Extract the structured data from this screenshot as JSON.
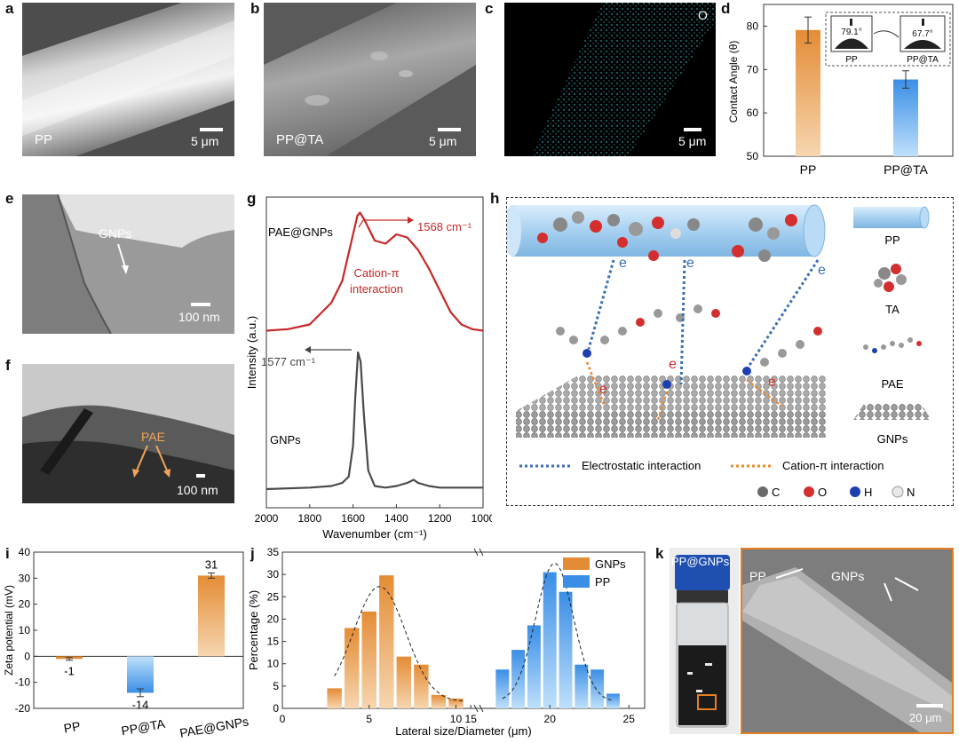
{
  "panel_letters": [
    "a",
    "b",
    "c",
    "d",
    "e",
    "f",
    "g",
    "h",
    "i",
    "j",
    "k"
  ],
  "panel_a": {
    "label": "PP",
    "scale": "5 μm"
  },
  "panel_b": {
    "label": "PP@TA",
    "scale": "5 μm"
  },
  "panel_c": {
    "element": "O",
    "scale": "5 μm"
  },
  "panel_e": {
    "label": "GNPs",
    "scale": "100 nm"
  },
  "panel_f": {
    "label": "PAE",
    "scale": "100 nm"
  },
  "panel_h": {
    "e_marks": [
      "e",
      "e",
      "e",
      "e",
      "e",
      "e"
    ],
    "legend_names": [
      "PP",
      "TA",
      "PAE",
      "GNPs"
    ],
    "interactions": [
      "Electrostatic interaction",
      "Cation-π interaction"
    ],
    "atoms": [
      "C",
      "O",
      "H",
      "N"
    ],
    "colors": {
      "electrostatic": "#3a6fb5",
      "cation_pi": "#e88a2e"
    }
  },
  "panel_k": {
    "vial_label": "PP@GNPs",
    "pp_label": "PP",
    "gnps_label": "GNPs",
    "scale": "20 μm"
  },
  "chart_data": [
    {
      "id": "d",
      "type": "bar",
      "categories": [
        "PP",
        "PP@TA"
      ],
      "values": [
        79.1,
        67.7
      ],
      "errors": [
        3.0,
        2.0
      ],
      "ylabel": "Contact Angle (θ)",
      "ylim": [
        50,
        85
      ],
      "yticks": [
        50,
        60,
        70,
        80
      ],
      "inset": {
        "angles": [
          "79.1°",
          "67.7°"
        ],
        "labels": [
          "PP",
          "PP@TA"
        ]
      },
      "colors": [
        "#e48c35",
        "#3a8ee6"
      ]
    },
    {
      "id": "g",
      "type": "line",
      "xlabel": "Wavenumber (cm⁻¹)",
      "ylabel": "Intensity (a.u.)",
      "xlim": [
        2000,
        1000
      ],
      "xticks": [
        2000,
        1800,
        1600,
        1400,
        1200,
        1000
      ],
      "series": [
        {
          "name": "PAE@GNPs",
          "color": "#c62828",
          "x": [
            2000,
            1900,
            1800,
            1700,
            1650,
            1600,
            1580,
            1568,
            1550,
            1500,
            1450,
            1400,
            1350,
            1300,
            1250,
            1200,
            1150,
            1100,
            1050,
            1000
          ],
          "y": [
            0.57,
            0.575,
            0.59,
            0.66,
            0.73,
            0.88,
            0.94,
            0.95,
            0.93,
            0.86,
            0.85,
            0.88,
            0.87,
            0.83,
            0.77,
            0.7,
            0.63,
            0.59,
            0.575,
            0.57
          ]
        },
        {
          "name": "GNPs",
          "color": "#4a4a4a",
          "x": [
            2000,
            1800,
            1700,
            1650,
            1620,
            1600,
            1590,
            1577,
            1565,
            1550,
            1530,
            1500,
            1450,
            1400,
            1350,
            1320,
            1300,
            1250,
            1200,
            1000
          ],
          "y": [
            0.06,
            0.065,
            0.07,
            0.08,
            0.1,
            0.2,
            0.35,
            0.5,
            0.47,
            0.3,
            0.12,
            0.07,
            0.065,
            0.07,
            0.08,
            0.09,
            0.08,
            0.07,
            0.065,
            0.065
          ]
        }
      ],
      "annotations": [
        "1568 cm⁻¹",
        "Cation-π",
        "interaction",
        "1577 cm⁻¹"
      ]
    },
    {
      "id": "i",
      "type": "bar",
      "categories": [
        "PP",
        "PP@TA",
        "PAE@GNPs"
      ],
      "values": [
        -1,
        -14,
        31
      ],
      "errors": [
        0.5,
        1.5,
        1.0
      ],
      "ylabel": "Zeta potential (mV)",
      "ylim": [
        -20,
        40
      ],
      "yticks": [
        -20,
        -10,
        0,
        10,
        20,
        30,
        40
      ],
      "colors": [
        "#e48c35",
        "#3a8ee6",
        "#e48c35"
      ]
    },
    {
      "id": "j",
      "type": "bar",
      "xlabel": "Lateral size/Diameter (μm)",
      "ylabel": "Percentage (%)",
      "ylim": [
        0,
        35
      ],
      "yticks": [
        0,
        5,
        10,
        15,
        20,
        25,
        30,
        35
      ],
      "xticks": [
        0,
        5,
        10,
        15,
        20,
        25
      ],
      "series": [
        {
          "name": "GNPs",
          "color": "#e48c35",
          "x": [
            3,
            4,
            5,
            6,
            7,
            8,
            9,
            10
          ],
          "values": [
            4.5,
            18,
            21.7,
            29.8,
            11.6,
            9.8,
            3,
            2.2
          ]
        },
        {
          "name": "PP",
          "color": "#3a8ee6",
          "x": [
            17,
            18,
            19,
            20,
            21,
            22,
            23,
            24
          ],
          "values": [
            8.7,
            13.1,
            18.6,
            30.5,
            26.1,
            9.8,
            8.7,
            3.3
          ]
        }
      ]
    }
  ]
}
